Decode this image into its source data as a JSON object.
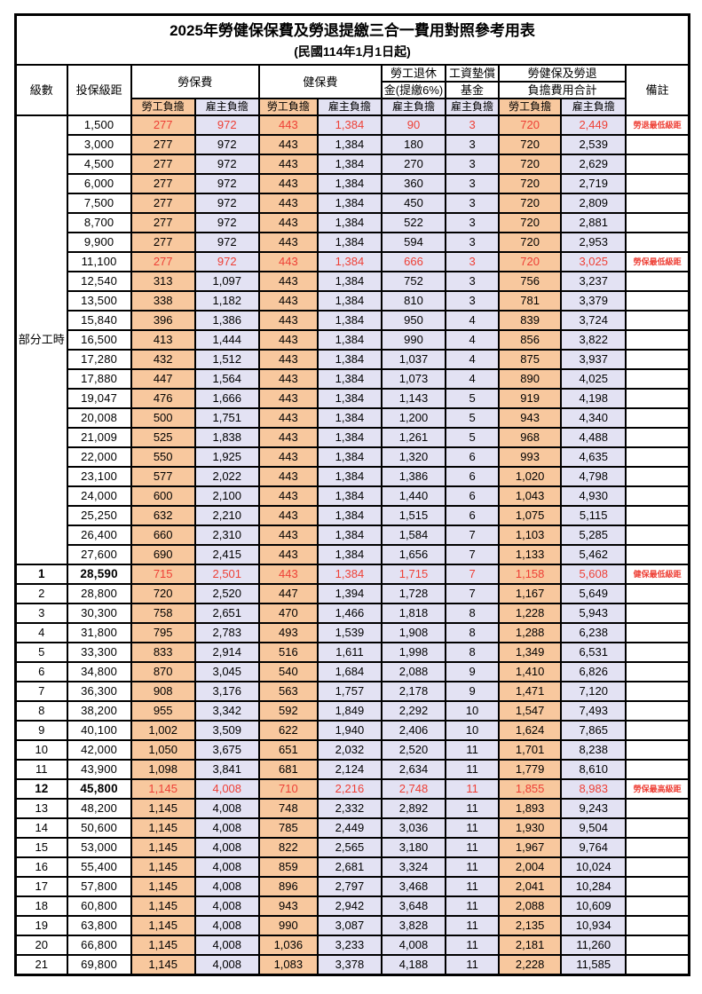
{
  "title": "2025年勞健保保費及勞退提繳三合一費用對照參考用表",
  "subtitle": "(民國114年1月1日起)",
  "colors": {
    "employee_column_bg": "#F8C89E",
    "employer_column_bg": "#E3E2F3",
    "highlight_text": "#EE4036",
    "border": "#000000"
  },
  "header": {
    "level": "級數",
    "bracket": "投保級距",
    "labor_ins": "勞保費",
    "health_ins": "健保費",
    "pension_l1": "勞工退休",
    "pension_l2": "金(提繳6%)",
    "wage_fund_l1": "工資墊償",
    "wage_fund_l2": "基金",
    "total_l1": "勞健保及勞退",
    "total_l2": "負擔費用合計",
    "remark": "備註",
    "employee": "勞工負擔",
    "employer": "雇主負擔"
  },
  "table": {
    "part_time_label": "部分工時",
    "part_time_span": 23,
    "rows": [
      {
        "level": null,
        "bracket": "1,500",
        "cells": [
          "277",
          "972",
          "443",
          "1,384",
          "90",
          "3",
          "720",
          "2,449"
        ],
        "remark": "勞退最低級距",
        "red": true
      },
      {
        "level": null,
        "bracket": "3,000",
        "cells": [
          "277",
          "972",
          "443",
          "1,384",
          "180",
          "3",
          "720",
          "2,539"
        ]
      },
      {
        "level": null,
        "bracket": "4,500",
        "cells": [
          "277",
          "972",
          "443",
          "1,384",
          "270",
          "3",
          "720",
          "2,629"
        ]
      },
      {
        "level": null,
        "bracket": "6,000",
        "cells": [
          "277",
          "972",
          "443",
          "1,384",
          "360",
          "3",
          "720",
          "2,719"
        ]
      },
      {
        "level": null,
        "bracket": "7,500",
        "cells": [
          "277",
          "972",
          "443",
          "1,384",
          "450",
          "3",
          "720",
          "2,809"
        ]
      },
      {
        "level": null,
        "bracket": "8,700",
        "cells": [
          "277",
          "972",
          "443",
          "1,384",
          "522",
          "3",
          "720",
          "2,881"
        ]
      },
      {
        "level": null,
        "bracket": "9,900",
        "cells": [
          "277",
          "972",
          "443",
          "1,384",
          "594",
          "3",
          "720",
          "2,953"
        ]
      },
      {
        "level": null,
        "bracket": "11,100",
        "cells": [
          "277",
          "972",
          "443",
          "1,384",
          "666",
          "3",
          "720",
          "3,025"
        ],
        "remark": "勞保最低級距",
        "red": true
      },
      {
        "level": null,
        "bracket": "12,540",
        "cells": [
          "313",
          "1,097",
          "443",
          "1,384",
          "752",
          "3",
          "756",
          "3,237"
        ]
      },
      {
        "level": null,
        "bracket": "13,500",
        "cells": [
          "338",
          "1,182",
          "443",
          "1,384",
          "810",
          "3",
          "781",
          "3,379"
        ]
      },
      {
        "level": null,
        "bracket": "15,840",
        "cells": [
          "396",
          "1,386",
          "443",
          "1,384",
          "950",
          "4",
          "839",
          "3,724"
        ]
      },
      {
        "level": null,
        "bracket": "16,500",
        "cells": [
          "413",
          "1,444",
          "443",
          "1,384",
          "990",
          "4",
          "856",
          "3,822"
        ]
      },
      {
        "level": null,
        "bracket": "17,280",
        "cells": [
          "432",
          "1,512",
          "443",
          "1,384",
          "1,037",
          "4",
          "875",
          "3,937"
        ]
      },
      {
        "level": null,
        "bracket": "17,880",
        "cells": [
          "447",
          "1,564",
          "443",
          "1,384",
          "1,073",
          "4",
          "890",
          "4,025"
        ]
      },
      {
        "level": null,
        "bracket": "19,047",
        "cells": [
          "476",
          "1,666",
          "443",
          "1,384",
          "1,143",
          "5",
          "919",
          "4,198"
        ]
      },
      {
        "level": null,
        "bracket": "20,008",
        "cells": [
          "500",
          "1,751",
          "443",
          "1,384",
          "1,200",
          "5",
          "943",
          "4,340"
        ]
      },
      {
        "level": null,
        "bracket": "21,009",
        "cells": [
          "525",
          "1,838",
          "443",
          "1,384",
          "1,261",
          "5",
          "968",
          "4,488"
        ]
      },
      {
        "level": null,
        "bracket": "22,000",
        "cells": [
          "550",
          "1,925",
          "443",
          "1,384",
          "1,320",
          "6",
          "993",
          "4,635"
        ]
      },
      {
        "level": null,
        "bracket": "23,100",
        "cells": [
          "577",
          "2,022",
          "443",
          "1,384",
          "1,386",
          "6",
          "1,020",
          "4,798"
        ]
      },
      {
        "level": null,
        "bracket": "24,000",
        "cells": [
          "600",
          "2,100",
          "443",
          "1,384",
          "1,440",
          "6",
          "1,043",
          "4,930"
        ]
      },
      {
        "level": null,
        "bracket": "25,250",
        "cells": [
          "632",
          "2,210",
          "443",
          "1,384",
          "1,515",
          "6",
          "1,075",
          "5,115"
        ]
      },
      {
        "level": null,
        "bracket": "26,400",
        "cells": [
          "660",
          "2,310",
          "443",
          "1,384",
          "1,584",
          "7",
          "1,103",
          "5,285"
        ]
      },
      {
        "level": null,
        "bracket": "27,600",
        "cells": [
          "690",
          "2,415",
          "443",
          "1,384",
          "1,656",
          "7",
          "1,133",
          "5,462"
        ]
      },
      {
        "level": "1",
        "bracket": "28,590",
        "cells": [
          "715",
          "2,501",
          "443",
          "1,384",
          "1,715",
          "7",
          "1,158",
          "5,608"
        ],
        "remark": "健保最低級距",
        "red": true,
        "bold": true
      },
      {
        "level": "2",
        "bracket": "28,800",
        "cells": [
          "720",
          "2,520",
          "447",
          "1,394",
          "1,728",
          "7",
          "1,167",
          "5,649"
        ]
      },
      {
        "level": "3",
        "bracket": "30,300",
        "cells": [
          "758",
          "2,651",
          "470",
          "1,466",
          "1,818",
          "8",
          "1,228",
          "5,943"
        ]
      },
      {
        "level": "4",
        "bracket": "31,800",
        "cells": [
          "795",
          "2,783",
          "493",
          "1,539",
          "1,908",
          "8",
          "1,288",
          "6,238"
        ]
      },
      {
        "level": "5",
        "bracket": "33,300",
        "cells": [
          "833",
          "2,914",
          "516",
          "1,611",
          "1,998",
          "8",
          "1,349",
          "6,531"
        ]
      },
      {
        "level": "6",
        "bracket": "34,800",
        "cells": [
          "870",
          "3,045",
          "540",
          "1,684",
          "2,088",
          "9",
          "1,410",
          "6,826"
        ]
      },
      {
        "level": "7",
        "bracket": "36,300",
        "cells": [
          "908",
          "3,176",
          "563",
          "1,757",
          "2,178",
          "9",
          "1,471",
          "7,120"
        ]
      },
      {
        "level": "8",
        "bracket": "38,200",
        "cells": [
          "955",
          "3,342",
          "592",
          "1,849",
          "2,292",
          "10",
          "1,547",
          "7,493"
        ]
      },
      {
        "level": "9",
        "bracket": "40,100",
        "cells": [
          "1,002",
          "3,509",
          "622",
          "1,940",
          "2,406",
          "10",
          "1,624",
          "7,865"
        ]
      },
      {
        "level": "10",
        "bracket": "42,000",
        "cells": [
          "1,050",
          "3,675",
          "651",
          "2,032",
          "2,520",
          "11",
          "1,701",
          "8,238"
        ]
      },
      {
        "level": "11",
        "bracket": "43,900",
        "cells": [
          "1,098",
          "3,841",
          "681",
          "2,124",
          "2,634",
          "11",
          "1,779",
          "8,610"
        ]
      },
      {
        "level": "12",
        "bracket": "45,800",
        "cells": [
          "1,145",
          "4,008",
          "710",
          "2,216",
          "2,748",
          "11",
          "1,855",
          "8,983"
        ],
        "remark": "勞保最高級距",
        "red": true,
        "bold": true
      },
      {
        "level": "13",
        "bracket": "48,200",
        "cells": [
          "1,145",
          "4,008",
          "748",
          "2,332",
          "2,892",
          "11",
          "1,893",
          "9,243"
        ]
      },
      {
        "level": "14",
        "bracket": "50,600",
        "cells": [
          "1,145",
          "4,008",
          "785",
          "2,449",
          "3,036",
          "11",
          "1,930",
          "9,504"
        ]
      },
      {
        "level": "15",
        "bracket": "53,000",
        "cells": [
          "1,145",
          "4,008",
          "822",
          "2,565",
          "3,180",
          "11",
          "1,967",
          "9,764"
        ]
      },
      {
        "level": "16",
        "bracket": "55,400",
        "cells": [
          "1,145",
          "4,008",
          "859",
          "2,681",
          "3,324",
          "11",
          "2,004",
          "10,024"
        ]
      },
      {
        "level": "17",
        "bracket": "57,800",
        "cells": [
          "1,145",
          "4,008",
          "896",
          "2,797",
          "3,468",
          "11",
          "2,041",
          "10,284"
        ]
      },
      {
        "level": "18",
        "bracket": "60,800",
        "cells": [
          "1,145",
          "4,008",
          "943",
          "2,942",
          "3,648",
          "11",
          "2,088",
          "10,609"
        ]
      },
      {
        "level": "19",
        "bracket": "63,800",
        "cells": [
          "1,145",
          "4,008",
          "990",
          "3,087",
          "3,828",
          "11",
          "2,135",
          "10,934"
        ]
      },
      {
        "level": "20",
        "bracket": "66,800",
        "cells": [
          "1,145",
          "4,008",
          "1,036",
          "3,233",
          "4,008",
          "11",
          "2,181",
          "11,260"
        ]
      },
      {
        "level": "21",
        "bracket": "69,800",
        "cells": [
          "1,145",
          "4,008",
          "1,083",
          "3,378",
          "4,188",
          "11",
          "2,228",
          "11,585"
        ]
      }
    ]
  }
}
